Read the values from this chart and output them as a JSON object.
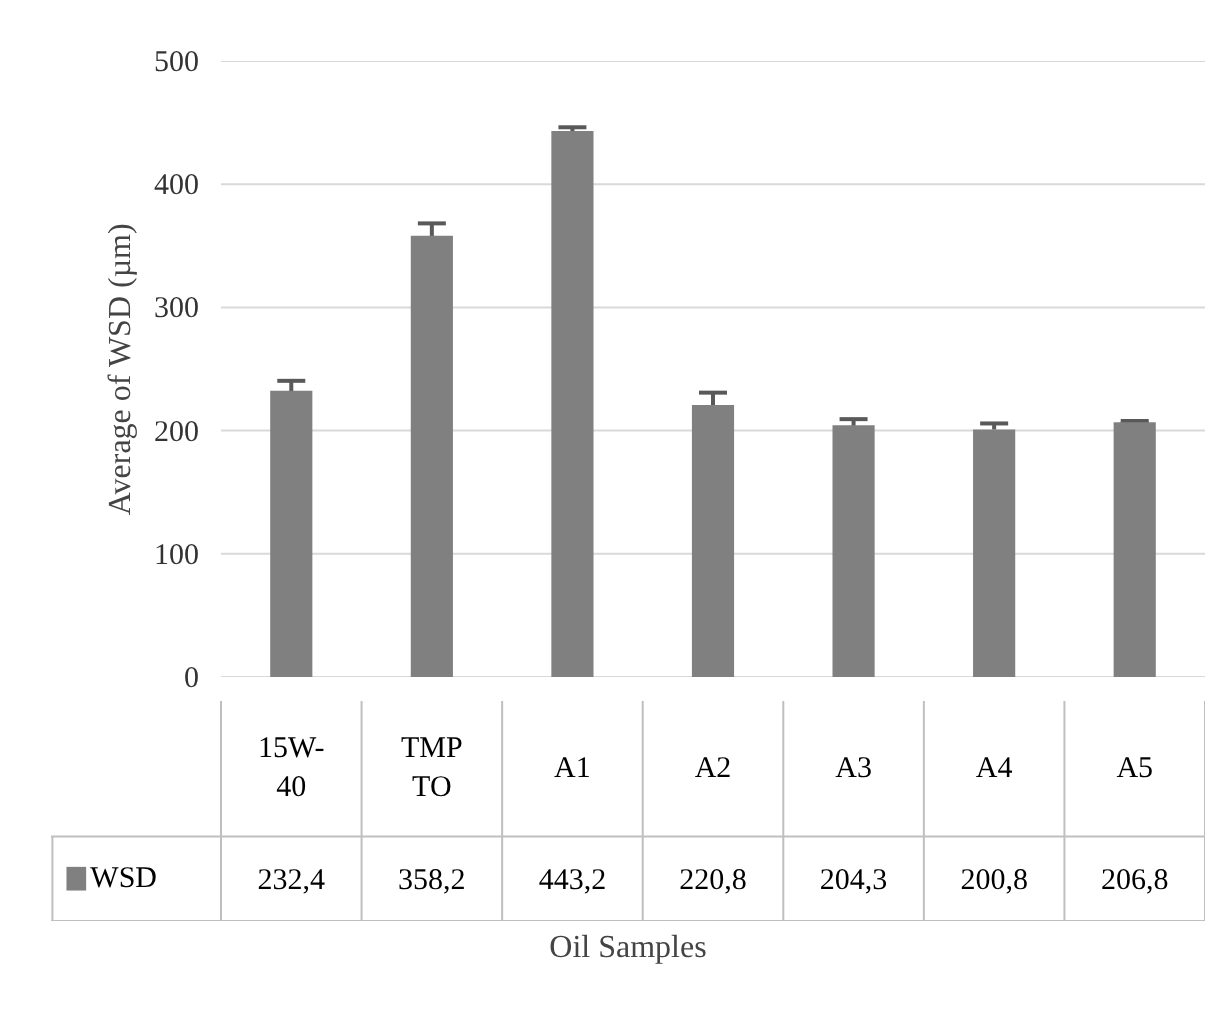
{
  "chart_data": {
    "type": "bar",
    "xlabel": "Oil Samples",
    "ylabel": "Average of WSD (µm)",
    "categories": [
      "15W-40",
      "TMPTO",
      "A1",
      "A2",
      "A3",
      "A4",
      "A5"
    ],
    "series": [
      {
        "name": "WSD",
        "color": "#808080",
        "values": [
          232.4,
          358.2,
          443.2,
          220.8,
          204.3,
          200.8,
          206.8
        ],
        "errors": [
          8,
          10,
          3,
          10,
          5,
          5,
          1
        ],
        "value_labels": [
          "232,4",
          "358,2",
          "443,2",
          "220,8",
          "204,3",
          "200,8",
          "206,8"
        ]
      }
    ],
    "ylim": [
      0,
      500
    ],
    "yticks": [
      0,
      100,
      200,
      300,
      400,
      500
    ],
    "grid": "y",
    "legend": "bottom"
  }
}
